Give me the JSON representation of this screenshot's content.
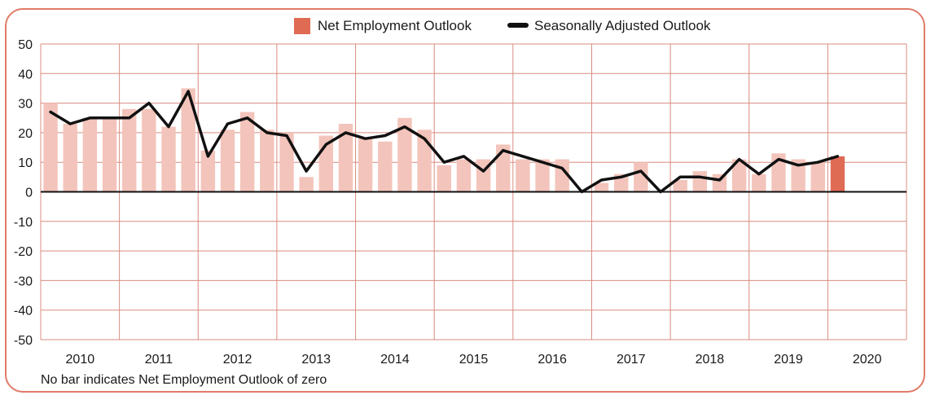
{
  "colors": {
    "frame": "#e07a68",
    "grid": "#d98c80",
    "bar": "#f3c4bb",
    "bar_latest": "#e06b55",
    "line": "#111111",
    "zero_line": "#111111"
  },
  "note": "No bar indicates Net Employment Outlook of zero",
  "chart_data": {
    "type": "bar",
    "title": "",
    "xlabel": "",
    "ylabel": "",
    "ylim": [
      -50,
      50
    ],
    "yticks": [
      50,
      40,
      30,
      20,
      10,
      0,
      -10,
      -20,
      -30,
      -40,
      -50
    ],
    "grid": true,
    "legend_position": "top",
    "year_labels": [
      "2010",
      "2011",
      "2012",
      "2013",
      "2014",
      "2015",
      "2016",
      "2017",
      "2018",
      "2019",
      "2020"
    ],
    "quarters_per_year": 4,
    "series": [
      {
        "name": "Net Employment Outlook",
        "kind": "bar",
        "values": [
          30,
          23,
          25,
          25,
          28,
          28,
          22,
          35,
          14,
          21,
          27,
          21,
          20,
          5,
          19,
          23,
          18,
          17,
          25,
          21,
          9,
          11,
          11,
          16,
          11,
          11,
          11,
          0,
          3,
          6,
          10,
          0,
          4,
          7,
          6,
          11,
          6,
          13,
          11,
          10,
          12
        ]
      },
      {
        "name": "Seasonally Adjusted Outlook",
        "kind": "line",
        "values": [
          27,
          23,
          25,
          25,
          25,
          30,
          22,
          34,
          12,
          23,
          25,
          20,
          19,
          7,
          16,
          20,
          18,
          19,
          22,
          18,
          10,
          12,
          7,
          14,
          12,
          10,
          8,
          0,
          4,
          5,
          7,
          0,
          5,
          5,
          4,
          11,
          6,
          11,
          9,
          10,
          12
        ]
      }
    ]
  }
}
